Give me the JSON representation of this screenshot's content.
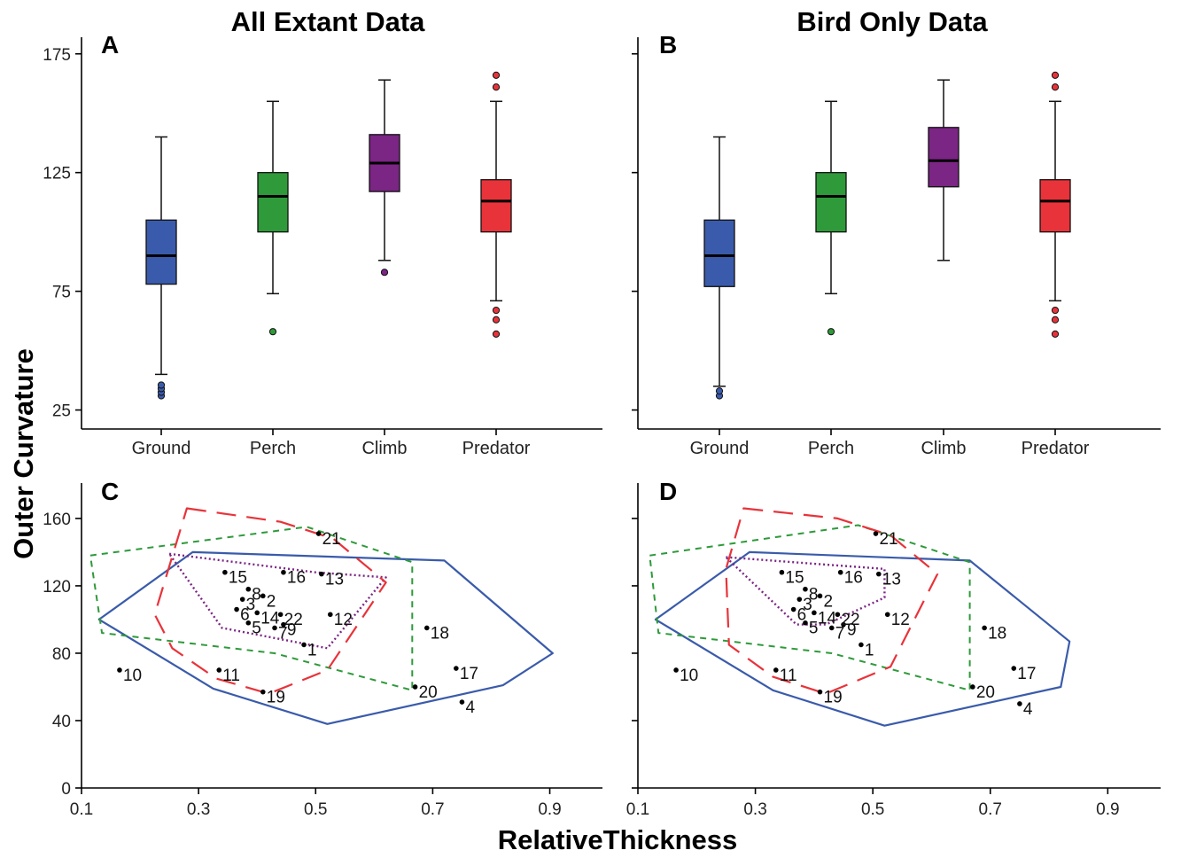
{
  "figure": {
    "title_a": "All Extant Data",
    "title_b": "Bird Only Data",
    "ylabel": "Outer Curvature",
    "xlabel": "RelativeThickness",
    "panels": {
      "A": "A",
      "B": "B",
      "C": "C",
      "D": "D"
    }
  },
  "colors": {
    "Ground": "#3a5bab",
    "Perch": "#2e9a3a",
    "Climb": "#7b2584",
    "Predator": "#e8333a"
  },
  "chart_data": [
    {
      "type": "box",
      "panel": "A",
      "title": "All Extant Data",
      "ylabel": "Outer Curvature",
      "ylim": [
        17,
        182
      ],
      "yticks": [
        25,
        75,
        125,
        175
      ],
      "categories": [
        "Ground",
        "Perch",
        "Climb",
        "Predator"
      ],
      "boxes": [
        {
          "category": "Ground",
          "whisker_low": 40,
          "q1": 78,
          "median": 90,
          "q3": 105,
          "whisker_high": 140,
          "outliers": [
            31,
            32.5,
            34,
            35.5
          ]
        },
        {
          "category": "Perch",
          "whisker_low": 74,
          "q1": 100,
          "median": 115,
          "q3": 125,
          "whisker_high": 155,
          "outliers": [
            58
          ]
        },
        {
          "category": "Climb",
          "whisker_low": 88,
          "q1": 117,
          "median": 129,
          "q3": 141,
          "whisker_high": 164,
          "outliers": [
            83
          ]
        },
        {
          "category": "Predator",
          "whisker_low": 71,
          "q1": 100,
          "median": 113,
          "q3": 122,
          "whisker_high": 155,
          "outliers": [
            57,
            63,
            67,
            161,
            166
          ]
        }
      ]
    },
    {
      "type": "box",
      "panel": "B",
      "title": "Bird Only Data",
      "ylim": [
        17,
        182
      ],
      "yticks": [
        25,
        75,
        125,
        175
      ],
      "categories": [
        "Ground",
        "Perch",
        "Climb",
        "Predator"
      ],
      "boxes": [
        {
          "category": "Ground",
          "whisker_low": 35,
          "q1": 77,
          "median": 90,
          "q3": 105,
          "whisker_high": 140,
          "outliers": [
            31,
            33
          ]
        },
        {
          "category": "Perch",
          "whisker_low": 74,
          "q1": 100,
          "median": 115,
          "q3": 125,
          "whisker_high": 155,
          "outliers": [
            58
          ]
        },
        {
          "category": "Climb",
          "whisker_low": 88,
          "q1": 119,
          "median": 130,
          "q3": 144,
          "whisker_high": 164,
          "outliers": []
        },
        {
          "category": "Predator",
          "whisker_low": 71,
          "q1": 100,
          "median": 113,
          "q3": 122,
          "whisker_high": 155,
          "outliers": [
            57,
            63,
            67,
            161,
            166
          ]
        }
      ]
    },
    {
      "type": "scatter",
      "panel": "C",
      "xlabel": "RelativeThickness",
      "xlim": [
        0.1,
        0.99
      ],
      "ylim": [
        0,
        181
      ],
      "xticks": [
        0.1,
        0.3,
        0.5,
        0.7,
        0.9
      ],
      "yticks": [
        0,
        40,
        80,
        120,
        160
      ],
      "points": [
        {
          "label": "1",
          "x": 0.48,
          "y": 85
        },
        {
          "label": "2",
          "x": 0.41,
          "y": 114
        },
        {
          "label": "3",
          "x": 0.375,
          "y": 112
        },
        {
          "label": "4",
          "x": 0.75,
          "y": 51
        },
        {
          "label": "5",
          "x": 0.385,
          "y": 98
        },
        {
          "label": "6",
          "x": 0.365,
          "y": 106
        },
        {
          "label": "7",
          "x": 0.43,
          "y": 95
        },
        {
          "label": "8",
          "x": 0.385,
          "y": 118
        },
        {
          "label": "9",
          "x": 0.445,
          "y": 97
        },
        {
          "label": "10",
          "x": 0.165,
          "y": 70
        },
        {
          "label": "11",
          "x": 0.335,
          "y": 70
        },
        {
          "label": "12",
          "x": 0.525,
          "y": 103
        },
        {
          "label": "13",
          "x": 0.51,
          "y": 127
        },
        {
          "label": "14",
          "x": 0.4,
          "y": 104
        },
        {
          "label": "15",
          "x": 0.345,
          "y": 128
        },
        {
          "label": "16",
          "x": 0.445,
          "y": 128
        },
        {
          "label": "17",
          "x": 0.74,
          "y": 71
        },
        {
          "label": "18",
          "x": 0.69,
          "y": 95
        },
        {
          "label": "19",
          "x": 0.41,
          "y": 57
        },
        {
          "label": "20",
          "x": 0.67,
          "y": 60
        },
        {
          "label": "21",
          "x": 0.505,
          "y": 151
        },
        {
          "label": "22",
          "x": 0.44,
          "y": 103
        }
      ],
      "hulls": [
        {
          "group": "Ground",
          "style": "solid",
          "points": [
            [
              0.13,
              100
            ],
            [
              0.29,
              140
            ],
            [
              0.72,
              135
            ],
            [
              0.905,
              80
            ],
            [
              0.82,
              61
            ],
            [
              0.52,
              38
            ],
            [
              0.325,
              59
            ]
          ]
        },
        {
          "group": "Perch",
          "style": "dashed",
          "points": [
            [
              0.115,
              138
            ],
            [
              0.485,
              155
            ],
            [
              0.665,
              134
            ],
            [
              0.665,
              58
            ],
            [
              0.43,
              80
            ],
            [
              0.135,
              92
            ]
          ]
        },
        {
          "group": "Climb",
          "style": "dotted",
          "points": [
            [
              0.25,
              139
            ],
            [
              0.5,
              128
            ],
            [
              0.62,
              125
            ],
            [
              0.52,
              83
            ],
            [
              0.34,
              95
            ]
          ]
        },
        {
          "group": "Predator",
          "style": "longdash",
          "points": [
            [
              0.28,
              166
            ],
            [
              0.44,
              158
            ],
            [
              0.53,
              148
            ],
            [
              0.62,
              122
            ],
            [
              0.52,
              70
            ],
            [
              0.42,
              56
            ],
            [
              0.33,
              65
            ],
            [
              0.255,
              83
            ],
            [
              0.225,
              103
            ]
          ]
        }
      ]
    },
    {
      "type": "scatter",
      "panel": "D",
      "xlim": [
        0.1,
        0.99
      ],
      "ylim": [
        0,
        181
      ],
      "xticks": [
        0.1,
        0.3,
        0.5,
        0.7,
        0.9
      ],
      "yticks": [
        0,
        40,
        80,
        120,
        160
      ],
      "points": [
        {
          "label": "1",
          "x": 0.48,
          "y": 85
        },
        {
          "label": "2",
          "x": 0.41,
          "y": 114
        },
        {
          "label": "3",
          "x": 0.375,
          "y": 112
        },
        {
          "label": "4",
          "x": 0.75,
          "y": 50
        },
        {
          "label": "5",
          "x": 0.385,
          "y": 98
        },
        {
          "label": "6",
          "x": 0.365,
          "y": 106
        },
        {
          "label": "7",
          "x": 0.43,
          "y": 95
        },
        {
          "label": "8",
          "x": 0.385,
          "y": 118
        },
        {
          "label": "9",
          "x": 0.45,
          "y": 97
        },
        {
          "label": "10",
          "x": 0.165,
          "y": 70
        },
        {
          "label": "11",
          "x": 0.335,
          "y": 70
        },
        {
          "label": "12",
          "x": 0.525,
          "y": 103
        },
        {
          "label": "13",
          "x": 0.51,
          "y": 127
        },
        {
          "label": "14",
          "x": 0.4,
          "y": 104
        },
        {
          "label": "15",
          "x": 0.345,
          "y": 128
        },
        {
          "label": "16",
          "x": 0.445,
          "y": 128
        },
        {
          "label": "17",
          "x": 0.74,
          "y": 71
        },
        {
          "label": "18",
          "x": 0.69,
          "y": 95
        },
        {
          "label": "19",
          "x": 0.41,
          "y": 57
        },
        {
          "label": "20",
          "x": 0.67,
          "y": 60
        },
        {
          "label": "21",
          "x": 0.505,
          "y": 151
        },
        {
          "label": "22",
          "x": 0.44,
          "y": 103
        }
      ],
      "hulls": [
        {
          "group": "Ground",
          "style": "solid",
          "points": [
            [
              0.13,
              100
            ],
            [
              0.29,
              140
            ],
            [
              0.665,
              135
            ],
            [
              0.835,
              87
            ],
            [
              0.82,
              60
            ],
            [
              0.52,
              37
            ],
            [
              0.33,
              58
            ]
          ]
        },
        {
          "group": "Perch",
          "style": "dashed",
          "points": [
            [
              0.12,
              138
            ],
            [
              0.475,
              156
            ],
            [
              0.665,
              134
            ],
            [
              0.665,
              58
            ],
            [
              0.43,
              80
            ],
            [
              0.135,
              92
            ]
          ]
        },
        {
          "group": "Climb",
          "style": "dotted",
          "points": [
            [
              0.25,
              137
            ],
            [
              0.52,
              130
            ],
            [
              0.52,
              113
            ],
            [
              0.42,
              97
            ],
            [
              0.37,
              97
            ]
          ]
        },
        {
          "group": "Predator",
          "style": "longdash",
          "points": [
            [
              0.28,
              166
            ],
            [
              0.44,
              160
            ],
            [
              0.53,
              150
            ],
            [
              0.61,
              127
            ],
            [
              0.53,
              72
            ],
            [
              0.42,
              56
            ],
            [
              0.33,
              66
            ],
            [
              0.255,
              85
            ],
            [
              0.25,
              130
            ]
          ]
        }
      ]
    }
  ]
}
